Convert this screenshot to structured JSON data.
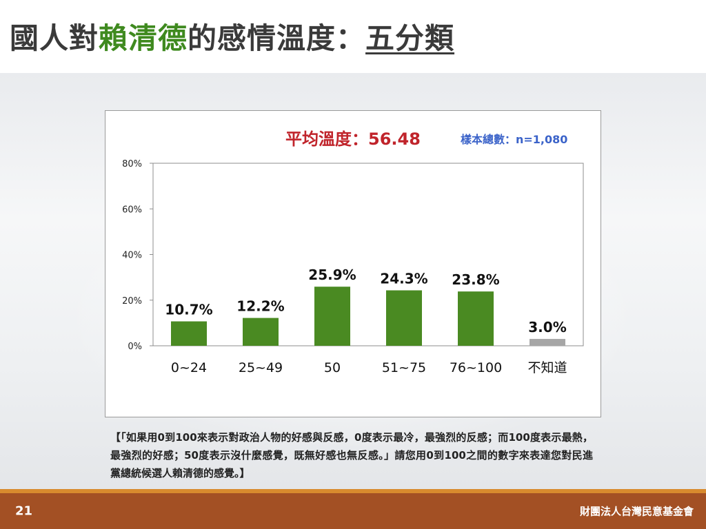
{
  "slide": {
    "title_parts": [
      "國人對",
      "賴清德",
      "的感情溫度：",
      "五分類"
    ],
    "average": "平均溫度：56.48",
    "sample": "樣本總數：n=1,080",
    "note": "【「如果用0到100來表示對政治人物的好感與反感，0度表示最冷，最強烈的反感；而100度表示最熱，最強烈的好感；50度表示沒什麼感覺，既無好感也無反感。」請您用0到100之間的數字來表達您對民進黨總統候選人賴清德的感覺。】",
    "page_number": "21",
    "organization": "財團法人台灣民意基金會"
  },
  "colors": {
    "bar": "#4a8a22",
    "bar_unknown": "#a6a6a6",
    "accent_green": "#3f8a1f",
    "accent_red": "#c0242b",
    "footer": "#a35024"
  },
  "chart_data": {
    "type": "bar",
    "categories": [
      "0~24",
      "25~49",
      "50",
      "51~75",
      "76~100",
      "不知道"
    ],
    "values": [
      10.7,
      12.2,
      25.9,
      24.3,
      23.8,
      3.0
    ],
    "data_labels": [
      "10.7%",
      "12.2%",
      "25.9%",
      "24.3%",
      "23.8%",
      "3.0%"
    ],
    "yticks": [
      0,
      20,
      40,
      60,
      80
    ],
    "ytick_labels": [
      "0%",
      "20%",
      "40%",
      "60%",
      "80%"
    ],
    "ylim": [
      0,
      80
    ],
    "grid": false,
    "legend": "none"
  }
}
